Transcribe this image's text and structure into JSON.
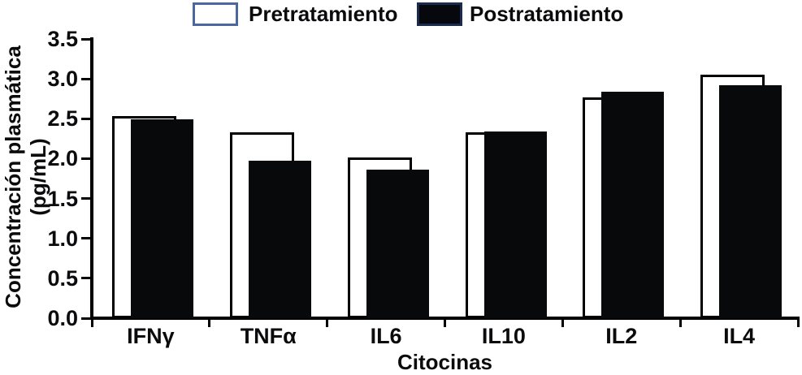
{
  "legend": {
    "items": [
      {
        "label": "Pretratamiento",
        "swatch_fill": "#ffffff",
        "swatch_border": "#4c66a0"
      },
      {
        "label": "Postratamiento",
        "swatch_fill": "#07080d",
        "swatch_border": "#1b2b4d"
      }
    ]
  },
  "chart_data": {
    "type": "bar",
    "style": "overlapping-paired-bars",
    "categories": [
      "IFNγ",
      "TNFα",
      "IL6",
      "IL10",
      "IL2",
      "IL4"
    ],
    "series": [
      {
        "name": "Pretratamiento",
        "fill": "#ffffff",
        "border": "#000000",
        "values": [
          2.53,
          2.33,
          2.01,
          2.33,
          2.77,
          3.05
        ]
      },
      {
        "name": "Postratamiento",
        "fill": "#08090b",
        "border": "#08090b",
        "values": [
          2.49,
          1.97,
          1.86,
          2.34,
          2.84,
          2.92
        ]
      }
    ],
    "title": "",
    "xlabel": "Citocinas",
    "ylabel_lines": [
      "Concentración plasmática",
      "(pg/mL)"
    ],
    "ylim": [
      0,
      3.5
    ],
    "ytick_step": 0.5,
    "ytick_labels": [
      "0.0",
      "0.5",
      "1.0",
      "1.5",
      "2.0",
      "2.5",
      "3.0",
      "3.5"
    ],
    "grid": false,
    "legend_position": "top"
  },
  "colors": {
    "axis": "#000000",
    "text": "#0b0b0d"
  }
}
